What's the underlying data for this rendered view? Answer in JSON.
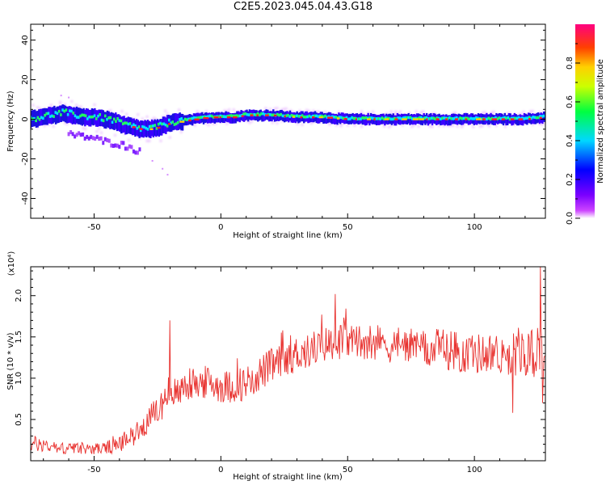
{
  "title": "C2E5.2023.045.04.43.G18",
  "colors": {
    "snr_line": "#e8312e",
    "axis": "#000000"
  },
  "chart_data": [
    {
      "type": "heatmap",
      "xlabel": "Height of straight line (km)",
      "ylabel": "Frequency (Hz)",
      "xlim": [
        -75,
        128
      ],
      "ylim": [
        -50,
        48
      ],
      "xticks": [
        "-50",
        "0",
        "50",
        "100"
      ],
      "yticks": [
        "-40",
        "-20",
        "0",
        "20",
        "40"
      ],
      "main_ridge": {
        "x": [
          -74,
          -70,
          -66,
          -62,
          -58,
          -54,
          -50,
          -46,
          -42,
          -38,
          -35,
          -32,
          -28,
          -24,
          -20,
          -15,
          -10,
          -5,
          0,
          5,
          10,
          20,
          30,
          40,
          50,
          60,
          70,
          80,
          90,
          100,
          110,
          120,
          128
        ],
        "freq": [
          0,
          1,
          2,
          3,
          2,
          1,
          1,
          0,
          -1,
          -3,
          -4,
          -5,
          -5,
          -4,
          -2,
          -1,
          0,
          1,
          1,
          1,
          2,
          2,
          1,
          1,
          0,
          0,
          0,
          0,
          0,
          0,
          0,
          0,
          1
        ]
      },
      "secondary_branch": {
        "x": [
          -60,
          -55,
          -50,
          -45,
          -40,
          -35,
          -32
        ],
        "freq": [
          -8,
          -9,
          -10,
          -12,
          -13,
          -15,
          -17
        ]
      },
      "colorbar": {
        "label": "Normalized spectral amplitude",
        "ticks": [
          "0.0",
          "0.2",
          "0.4",
          "0.6",
          "0.8"
        ],
        "range": [
          0,
          1
        ]
      }
    },
    {
      "type": "line",
      "xlabel": "Height of straight line (km)",
      "ylabel": "SNR (10 * v/v)",
      "multiplier": "(x10⁴)",
      "xlim": [
        -75,
        128
      ],
      "ylim": [
        0,
        2.35
      ],
      "xticks": [
        "-50",
        "0",
        "50",
        "100"
      ],
      "yticks": [
        "0.5",
        "1.0",
        "1.5",
        "2.0"
      ],
      "series": [
        {
          "x": [
            -75,
            -70,
            -65,
            -60,
            -55,
            -50,
            -45,
            -40,
            -35,
            -30,
            -25,
            -22,
            -20,
            -18,
            -15,
            -10,
            -5,
            0,
            5,
            10,
            15,
            20,
            25,
            30,
            35,
            40,
            45,
            50,
            55,
            60,
            65,
            70,
            75,
            80,
            85,
            90,
            95,
            100,
            105,
            110,
            115,
            120,
            125,
            128
          ],
          "y": [
            0.2,
            0.2,
            0.15,
            0.15,
            0.15,
            0.15,
            0.15,
            0.2,
            0.3,
            0.45,
            0.6,
            0.75,
            0.85,
            0.8,
            0.9,
            0.95,
            0.95,
            0.9,
            0.9,
            0.95,
            1.05,
            1.15,
            1.2,
            1.3,
            1.35,
            1.4,
            1.45,
            1.45,
            1.45,
            1.45,
            1.4,
            1.4,
            1.4,
            1.35,
            1.35,
            1.35,
            1.3,
            1.3,
            1.3,
            1.3,
            1.3,
            1.3,
            1.3,
            1.3
          ],
          "noise_amplitude": [
            0.1,
            0.1,
            0.08,
            0.07,
            0.07,
            0.07,
            0.08,
            0.1,
            0.12,
            0.15,
            0.18,
            0.2,
            0.22,
            0.2,
            0.2,
            0.2,
            0.2,
            0.2,
            0.2,
            0.22,
            0.22,
            0.22,
            0.22,
            0.22,
            0.22,
            0.22,
            0.22,
            0.22,
            0.22,
            0.22,
            0.22,
            0.22,
            0.22,
            0.22,
            0.25,
            0.25,
            0.25,
            0.25,
            0.25,
            0.25,
            0.28,
            0.28,
            0.3,
            0.3
          ],
          "spikes": [
            {
              "x": -20,
              "y": 1.7
            },
            {
              "x": 126,
              "y": 2.35
            },
            {
              "x": 127,
              "y": 0.7
            },
            {
              "x": 115,
              "y": 0.58
            },
            {
              "x": 45,
              "y": 2.02
            }
          ]
        }
      ]
    }
  ]
}
